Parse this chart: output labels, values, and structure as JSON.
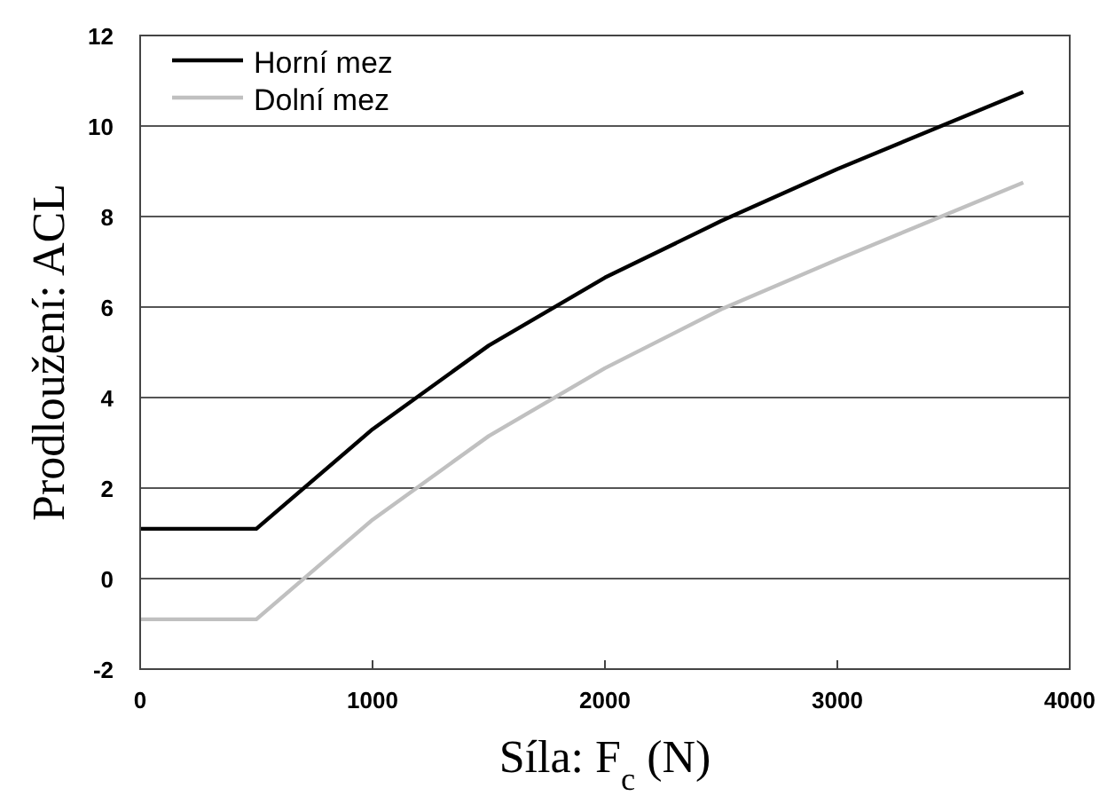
{
  "chart_data": {
    "type": "line",
    "xlabel": "Síla: F$_{c}$ (N)",
    "ylabel": "Prodloužení: ACL",
    "xlim": [
      0,
      4000
    ],
    "xticks": [
      0,
      1000,
      2000,
      3000,
      4000
    ],
    "ylim": [
      -2,
      12
    ],
    "yticks": [
      -2,
      0,
      2,
      4,
      6,
      8,
      10,
      12
    ],
    "grid": "y",
    "legend": "top left",
    "series": [
      {
        "name": "Horní mez",
        "color": "#000000",
        "x": [
          0,
          500,
          1000,
          1500,
          2000,
          2500,
          3000,
          3800
        ],
        "values": [
          1.1,
          1.1,
          3.3,
          5.15,
          6.65,
          7.9,
          9.05,
          10.75
        ]
      },
      {
        "name": "Dolní mez",
        "color": "#c0c0c0",
        "x": [
          0,
          500,
          1000,
          1500,
          2000,
          2500,
          3000,
          3800
        ],
        "values": [
          -0.9,
          -0.9,
          1.3,
          3.15,
          4.65,
          5.95,
          7.05,
          8.75
        ]
      }
    ]
  }
}
